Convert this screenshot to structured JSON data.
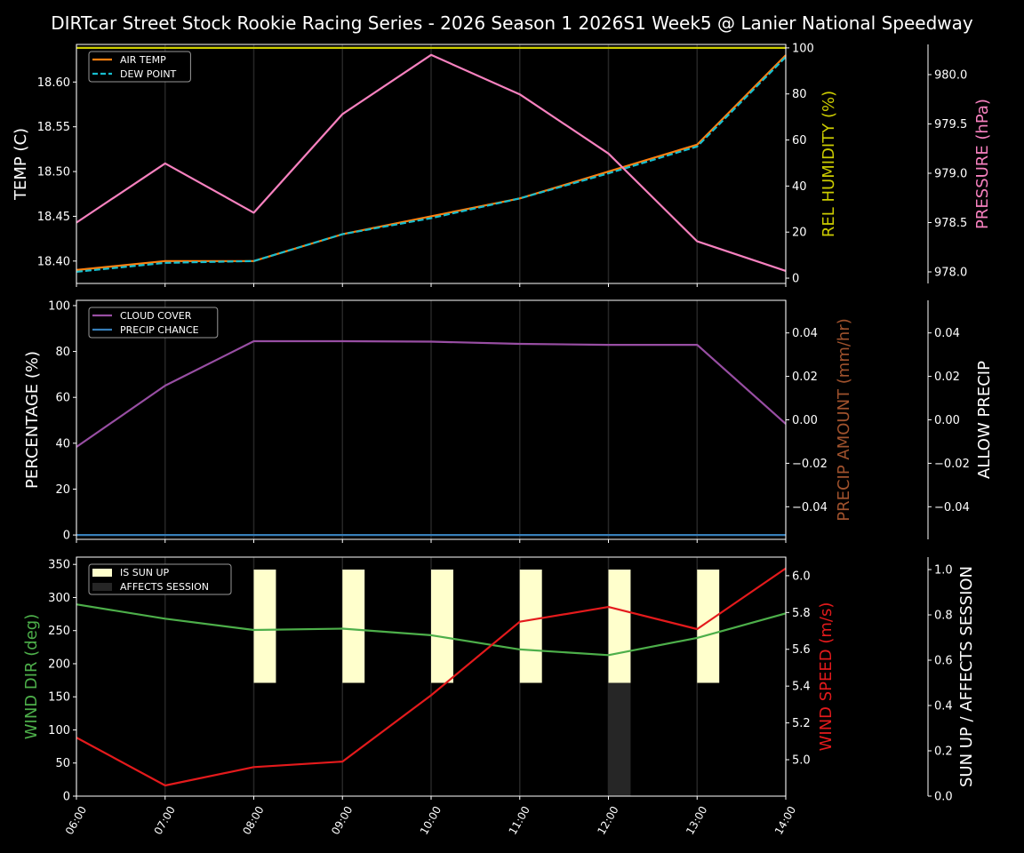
{
  "chart_data": {
    "type": "line",
    "title": "DIRTcar Street Stock Rookie Racing Series - 2026 Season 1 2026S1 Week5 @ Lanier National Speedway",
    "x": [
      "06:00",
      "07:00",
      "08:00",
      "09:00",
      "10:00",
      "11:00",
      "12:00",
      "13:00",
      "14:00"
    ],
    "grid": "vertical",
    "panels": [
      {
        "legend_placement": "upper-left",
        "axes": [
          {
            "id": "temp",
            "side": "left",
            "label": "TEMP (C)",
            "color": "#ffffff",
            "ylim": [
              18.375,
              18.642
            ],
            "ticks": [
              "18.40",
              "18.45",
              "18.50",
              "18.55",
              "18.60"
            ]
          },
          {
            "id": "hum",
            "side": "right",
            "label": "REL HUMIDITY (%)",
            "color": "#cccc00",
            "ylim": [
              -2.3,
              101.5
            ],
            "ticks": [
              "0",
              "20",
              "40",
              "60",
              "80",
              "100"
            ]
          },
          {
            "id": "pres",
            "side": "right2",
            "label": "PRESSURE (hPa)",
            "color": "#f781bf",
            "ylim": [
              977.883,
              980.306
            ],
            "ticks": [
              "978.0",
              "978.5",
              "979.0",
              "979.5",
              "980.0"
            ]
          }
        ],
        "series": [
          {
            "name": "AIR TEMP",
            "axis": "temp",
            "color": "#ff7f0e",
            "style": "solid",
            "legend": true,
            "values": [
              18.39,
              18.4,
              18.4,
              18.43,
              18.45,
              18.47,
              18.5,
              18.53,
              18.63
            ]
          },
          {
            "name": "DEW POINT",
            "axis": "temp",
            "color": "#17becf",
            "style": "dashed",
            "legend": true,
            "values": [
              18.388,
              18.398,
              18.4,
              18.43,
              18.448,
              18.47,
              18.498,
              18.528,
              18.628
            ]
          },
          {
            "axis": "hum",
            "color": "#cccc00",
            "style": "solid",
            "legend": false,
            "values": [
              100,
              100,
              100,
              100,
              100,
              100,
              100,
              100,
              100
            ]
          },
          {
            "axis": "pres",
            "color": "#f781bf",
            "style": "solid",
            "legend": false,
            "values": [
              978.5,
              979.1,
              978.6,
              979.6,
              980.2,
              979.8,
              979.2,
              978.31,
              978.01
            ]
          }
        ]
      },
      {
        "legend_placement": "upper-left",
        "axes": [
          {
            "id": "pct",
            "side": "left",
            "label": "PERCENTAGE (%)",
            "color": "#ffffff",
            "ylim": [
              -1.9,
              102.3
            ],
            "ticks": [
              "0",
              "20",
              "40",
              "60",
              "80",
              "100"
            ]
          },
          {
            "id": "amt",
            "side": "right",
            "label": "PRECIP AMOUNT (mm/hr)",
            "color": "#a0522d",
            "ylim": [
              -0.055,
              0.055
            ],
            "ticks": [
              "−0.04",
              "−0.02",
              "0.00",
              "0.02",
              "0.04"
            ]
          },
          {
            "id": "allow",
            "side": "right2",
            "label": "ALLOW PRECIP",
            "color": "#ffffff",
            "ylim": [
              -0.055,
              0.055
            ],
            "ticks": [
              "−0.04",
              "−0.02",
              "0.00",
              "0.02",
              "0.04"
            ]
          }
        ],
        "series": [
          {
            "name": "CLOUD COVER",
            "axis": "pct",
            "color": "#984ea3",
            "style": "solid",
            "legend": true,
            "values": [
              38.4,
              65.1,
              84.5,
              84.5,
              84.3,
              83.3,
              82.9,
              82.9,
              48.4
            ]
          },
          {
            "name": "PRECIP CHANCE",
            "axis": "pct",
            "color": "#377eb8",
            "style": "solid",
            "legend": true,
            "values": [
              0,
              0,
              0,
              0,
              0,
              0,
              0,
              0,
              0
            ]
          }
        ]
      },
      {
        "legend_placement": "upper-left",
        "axes": [
          {
            "id": "dir",
            "side": "left",
            "label": "WIND DIR (deg)",
            "color": "#4daf4a",
            "ylim": [
              0,
              361
            ],
            "ticks": [
              "0",
              "50",
              "100",
              "150",
              "200",
              "250",
              "300",
              "350"
            ]
          },
          {
            "id": "spd",
            "side": "right",
            "label": "WIND SPEED (m/s)",
            "color": "#e41a1c",
            "ylim": [
              4.802,
              6.101
            ],
            "ticks": [
              "5.0",
              "5.2",
              "5.4",
              "5.6",
              "5.8",
              "6.0"
            ]
          },
          {
            "id": "sun",
            "side": "right2",
            "label": "SUN UP / AFFECTS SESSION",
            "color": "#ffffff",
            "ylim": [
              0,
              1.055
            ],
            "ticks": [
              "0.0",
              "0.2",
              "0.4",
              "0.6",
              "0.8",
              "1.0"
            ]
          }
        ],
        "bars": [
          {
            "name": "IS SUN UP",
            "axis": "sun",
            "color": "#ffffcc",
            "range": [
              0.5,
              1.0
            ],
            "values": [
              0,
              0,
              1,
              1,
              1,
              1,
              1,
              1,
              0
            ]
          },
          {
            "name": "AFFECTS SESSION",
            "axis": "sun",
            "color": "#262626",
            "range": [
              0,
              0.5
            ],
            "values": [
              0,
              0,
              0,
              0,
              0,
              0,
              1,
              0,
              0
            ]
          }
        ],
        "series": [
          {
            "axis": "dir",
            "color": "#4daf4a",
            "style": "solid",
            "legend": false,
            "values": [
              289.6,
              268,
              251,
              253,
              243,
              221.5,
              213,
              239,
              276
            ]
          },
          {
            "axis": "spd",
            "color": "#e41a1c",
            "style": "solid",
            "legend": false,
            "values": [
              5.12,
              4.86,
              4.96,
              4.99,
              5.35,
              5.75,
              5.83,
              5.71,
              6.04
            ]
          }
        ]
      }
    ]
  }
}
